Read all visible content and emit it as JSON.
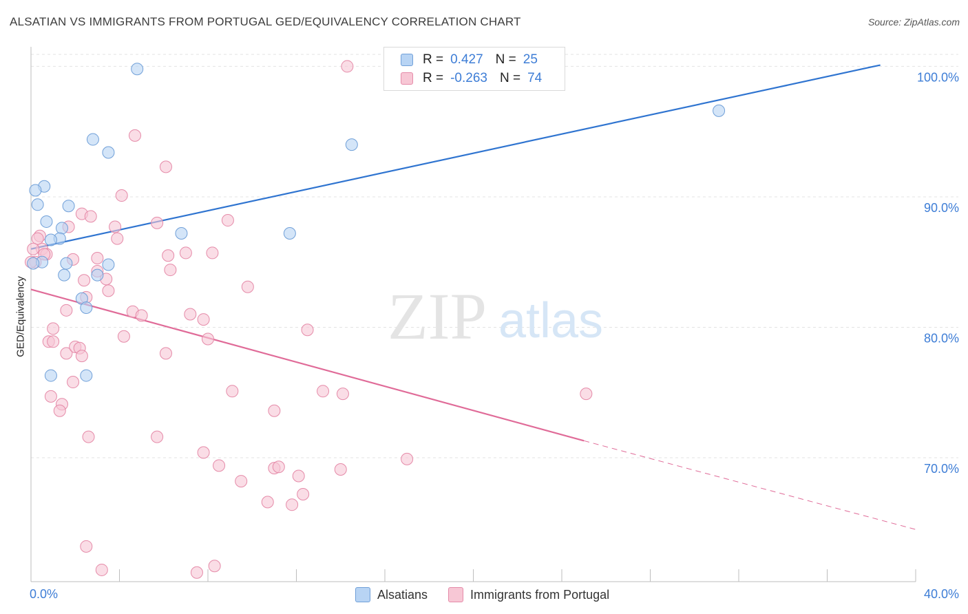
{
  "title": "ALSATIAN VS IMMIGRANTS FROM PORTUGAL GED/EQUIVALENCY CORRELATION CHART",
  "source": "Source: ZipAtlas.com",
  "watermark": {
    "zip": "ZIP",
    "atlas": "atlas"
  },
  "stats": {
    "alsatians": {
      "r_label": "R =",
      "r_value": "0.427",
      "n_label": "N =",
      "n_value": "25"
    },
    "portugal": {
      "r_label": "R =",
      "r_value": "-0.263",
      "n_label": "N =",
      "n_value": "74"
    }
  },
  "legend": {
    "alsatians": "Alsatians",
    "portugal": "Immigrants from Portugal"
  },
  "colors": {
    "blue_fill": "#b8d4f4",
    "blue_stroke": "#6f9fd8",
    "blue_line": "#2f74d0",
    "pink_fill": "#f7c7d5",
    "pink_stroke": "#e58aa8",
    "pink_line": "#e06b98",
    "tick_label": "#3d7dd6",
    "grid": "#e3e3e3"
  },
  "chart_data": {
    "type": "scatter",
    "title": "ALSATIAN VS IMMIGRANTS FROM PORTUGAL GED/EQUIVALENCY CORRELATION CHART",
    "xlabel": "",
    "ylabel": "GED/Equivalency",
    "xlim": [
      0,
      40
    ],
    "ylim": [
      60.5,
      101.5
    ],
    "x_tick_labels": [
      "0.0%",
      "40.0%"
    ],
    "y_ticks": [
      70,
      80,
      90,
      100
    ],
    "y_tick_labels": [
      "70.0%",
      "80.0%",
      "90.0%",
      "100.0%"
    ],
    "grid": true,
    "series": [
      {
        "name": "Alsatians",
        "x": [
          4.8,
          2.8,
          3.5,
          0.6,
          0.2,
          0.3,
          1.7,
          0.7,
          1.4,
          1.3,
          0.9,
          6.8,
          3.5,
          1.6,
          3.0,
          1.5,
          0.5,
          2.3,
          2.5,
          0.9,
          2.5,
          11.7,
          14.5,
          31.1,
          0.1
        ],
        "y": [
          99.8,
          94.4,
          93.4,
          90.8,
          90.5,
          89.4,
          89.3,
          88.1,
          87.6,
          86.8,
          86.7,
          87.2,
          84.8,
          84.9,
          84.0,
          84.0,
          85.0,
          82.2,
          81.5,
          76.3,
          76.3,
          87.2,
          94.0,
          96.6,
          84.9
        ]
      },
      {
        "name": "Immigrants from Portugal",
        "x": [
          14.3,
          16.3,
          4.7,
          6.1,
          4.1,
          5.7,
          2.3,
          0.4,
          0.5,
          0.7,
          2.7,
          1.7,
          3.8,
          7.0,
          8.9,
          6.2,
          6.3,
          3.0,
          3.0,
          1.9,
          3.4,
          8.2,
          3.9,
          2.4,
          1.6,
          1.0,
          1.6,
          0.8,
          2.5,
          3.5,
          4.6,
          5.0,
          7.2,
          7.8,
          8.0,
          4.2,
          2.0,
          1.0,
          2.2,
          2.3,
          6.1,
          0.9,
          1.9,
          1.4,
          2.6,
          11.0,
          9.1,
          13.2,
          14.1,
          11.0,
          17.0,
          2.5,
          5.7,
          1.3,
          7.8,
          8.5,
          11.2,
          14.0,
          12.1,
          9.5,
          10.7,
          12.3,
          11.8,
          12.5,
          3.2,
          7.5,
          8.3,
          9.8,
          0.3,
          0.2,
          0.0,
          0.1,
          25.1,
          0.6
        ],
        "y": [
          100.0,
          100.0,
          94.7,
          92.3,
          90.1,
          88.0,
          88.7,
          87.0,
          86.0,
          85.6,
          88.5,
          87.7,
          87.7,
          85.7,
          88.2,
          85.5,
          84.4,
          85.3,
          84.3,
          85.2,
          83.7,
          85.7,
          86.8,
          83.6,
          81.3,
          79.9,
          78.0,
          78.9,
          82.3,
          82.8,
          81.2,
          80.9,
          81.0,
          80.6,
          79.1,
          79.3,
          78.5,
          78.9,
          78.4,
          77.8,
          78.0,
          74.7,
          75.8,
          74.1,
          71.6,
          73.6,
          75.1,
          75.1,
          74.9,
          69.2,
          69.9,
          63.2,
          71.6,
          73.6,
          70.4,
          69.4,
          69.3,
          69.1,
          68.6,
          68.2,
          66.6,
          67.2,
          66.4,
          79.8,
          61.4,
          61.2,
          61.7,
          83.1,
          86.8,
          85.0,
          85.0,
          86.0,
          74.9,
          85.6
        ]
      }
    ],
    "trendlines": [
      {
        "name": "Alsatians",
        "x": [
          0,
          38.4
        ],
        "y": [
          86.0,
          100.1
        ],
        "style": "solid"
      },
      {
        "name": "Immigrants from Portugal",
        "x": [
          0,
          25.0
        ],
        "y": [
          82.9,
          71.3
        ],
        "style": "solid"
      },
      {
        "name": "Immigrants from Portugal",
        "x": [
          25.0,
          40.0
        ],
        "y": [
          71.3,
          64.5
        ],
        "style": "dashed"
      }
    ]
  }
}
